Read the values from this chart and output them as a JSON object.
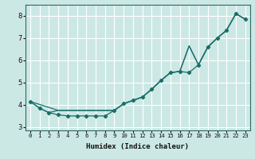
{
  "xlabel": "Humidex (Indice chaleur)",
  "bg_color": "#cce8e5",
  "grid_color": "#b0d8d4",
  "line_color": "#1a6e68",
  "xlim": [
    -0.5,
    23.5
  ],
  "ylim": [
    2.85,
    8.5
  ],
  "yticks": [
    3,
    4,
    5,
    6,
    7,
    8
  ],
  "xticks": [
    0,
    1,
    2,
    3,
    4,
    5,
    6,
    7,
    8,
    9,
    10,
    11,
    12,
    13,
    14,
    15,
    16,
    17,
    18,
    19,
    20,
    21,
    22,
    23
  ],
  "curve_main_x": [
    0,
    1,
    2,
    3,
    4,
    5,
    6,
    7,
    8,
    9,
    10,
    11,
    12,
    13,
    14,
    15,
    16,
    17,
    18,
    19,
    20,
    21,
    22,
    23
  ],
  "curve_main_y": [
    4.15,
    3.85,
    3.65,
    3.55,
    3.5,
    3.5,
    3.5,
    3.5,
    3.5,
    3.75,
    4.05,
    4.2,
    4.35,
    4.7,
    5.1,
    5.45,
    5.5,
    5.45,
    5.8,
    6.6,
    7.0,
    7.35,
    8.1,
    7.85
  ],
  "curve_mid_x": [
    0,
    1,
    2,
    3,
    9,
    10,
    11,
    12,
    13,
    14,
    15,
    16,
    17,
    18,
    19,
    20,
    21,
    22,
    23
  ],
  "curve_mid_y": [
    4.15,
    3.85,
    3.65,
    3.75,
    3.75,
    4.05,
    4.2,
    4.35,
    4.7,
    5.1,
    5.45,
    5.5,
    6.65,
    5.8,
    6.6,
    7.0,
    7.35,
    8.1,
    7.85
  ],
  "curve_top_x": [
    0,
    3,
    9,
    10,
    11,
    12,
    13,
    14,
    15,
    16,
    17,
    18,
    19,
    20,
    21,
    22,
    23
  ],
  "curve_top_y": [
    4.15,
    3.75,
    3.75,
    4.05,
    4.2,
    4.35,
    4.7,
    5.1,
    5.45,
    5.5,
    6.65,
    5.8,
    6.6,
    7.0,
    7.35,
    8.1,
    7.85
  ]
}
